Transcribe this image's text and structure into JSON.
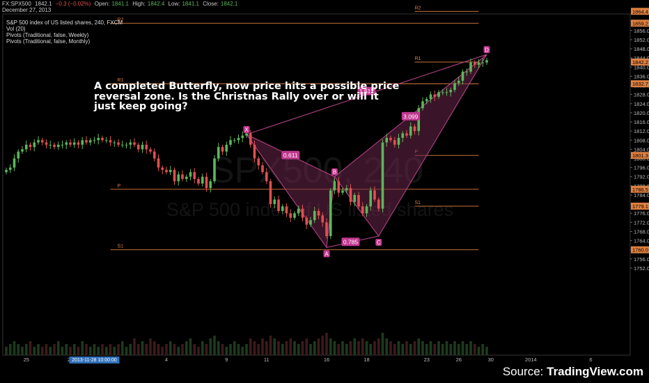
{
  "header": {
    "symbol": "FX:SPX500",
    "price": "1842.1",
    "change": "−0.3 (−0.02%)",
    "open_label": "Open:",
    "open": "1841.1",
    "high_label": "High:",
    "high": "1842.4",
    "low_label": "Low:",
    "low": "1841.1",
    "close_label": "Close:",
    "close": "1842.1",
    "date": "December 27, 2013"
  },
  "legend": [
    "S&P 500 index of US listed shares, 240, FXCM",
    "Vol (20)",
    "Pivots (Traditional, false, Weekly)",
    "Pivots (Traditional, false, Monthly)"
  ],
  "annotation": "A completed Butterfly, now price hits a possible price reversal zone. Is the Christnas Rally over or will it just keep going?",
  "watermark": {
    "line1": "SPX500, 240",
    "line2": "S&P 500 index of US listed shares"
  },
  "source": {
    "prefix": "Source: ",
    "brand": "TradingView.com"
  },
  "colors": {
    "background": "#000000",
    "up": "#5ab85a",
    "down": "#e05050",
    "pivot": "#e08040",
    "pattern": "#c04890",
    "pattern_fill": "#6a2448",
    "label_bg": "#c03890"
  },
  "chart_data": {
    "type": "candlestick",
    "y_range": [
      1748,
      1866
    ],
    "y_ticks": [
      1752,
      1756,
      1760,
      1764,
      1768,
      1772,
      1776,
      1780,
      1784,
      1788,
      1792,
      1796,
      1800,
      1804,
      1808,
      1812,
      1816,
      1820,
      1824,
      1828,
      1832,
      1836,
      1840,
      1844,
      1848,
      1852,
      1856,
      1860,
      1864
    ],
    "x_ticks": [
      {
        "label": "25",
        "i": 5
      },
      {
        "label": "27",
        "i": 16
      },
      {
        "label": "4",
        "i": 40
      },
      {
        "label": "9",
        "i": 55
      },
      {
        "label": "11",
        "i": 65
      },
      {
        "label": "16",
        "i": 80
      },
      {
        "label": "18",
        "i": 90
      },
      {
        "label": "23",
        "i": 105
      },
      {
        "label": "26",
        "i": 113
      },
      {
        "label": "30",
        "i": 121
      },
      {
        "label": "2014",
        "i": 131
      },
      {
        "label": "6",
        "i": 146
      }
    ],
    "cursor_date": "2013-11-28 10:00:00",
    "price_labels": [
      {
        "value": 1864.4,
        "text": "1864.4",
        "color": "#e08040"
      },
      {
        "value": 1859.2,
        "text": "1859.2",
        "color": "#e08040"
      },
      {
        "value": 1842.2,
        "text": "1842.2",
        "color": "#e08040"
      },
      {
        "value": 1832.7,
        "text": "1832.7",
        "color": "#e08040"
      },
      {
        "value": 1801.3,
        "text": "1801.3",
        "color": "#e08040"
      },
      {
        "value": 1786.5,
        "text": "1786.5",
        "color": "#e08040"
      },
      {
        "value": 1779.1,
        "text": "1779.1",
        "color": "#e08040"
      },
      {
        "value": 1760.0,
        "text": "1760.0",
        "color": "#e08040"
      }
    ],
    "pivots": [
      {
        "label": "R2",
        "value": 1864.4,
        "from": 102,
        "to": 118
      },
      {
        "label": "R1",
        "value": 1842.2,
        "from": 102,
        "to": 118
      },
      {
        "label": "P",
        "value": 1801.3,
        "from": 102,
        "to": 118
      },
      {
        "label": "S1",
        "value": 1779.1,
        "from": 102,
        "to": 118
      },
      {
        "label": "R2",
        "value": 1859.2,
        "from": 26,
        "to": 118
      },
      {
        "label": "R1",
        "value": 1832.7,
        "from": 26,
        "to": 118
      },
      {
        "label": "P",
        "value": 1786.5,
        "from": 26,
        "to": 118
      },
      {
        "label": "S1",
        "value": 1760.0,
        "from": 26,
        "to": 118
      }
    ],
    "pattern": {
      "name": "Butterfly",
      "points": [
        {
          "label": "X",
          "i": 60,
          "price": 1810.5
        },
        {
          "label": "A",
          "i": 80,
          "price": 1761.0
        },
        {
          "label": "B",
          "i": 82,
          "price": 1792.0
        },
        {
          "label": "C",
          "i": 93,
          "price": 1766.0
        },
        {
          "label": "D",
          "i": 120,
          "price": 1845.5
        }
      ],
      "ratios": [
        {
          "text": "0.611",
          "i": 71,
          "price": 1801.5
        },
        {
          "text": "0.785",
          "i": 86,
          "price": 1763.5
        },
        {
          "text": "3.099",
          "i": 101,
          "price": 1818.5
        },
        {
          "text": "1.617",
          "i": 90,
          "price": 1829.5
        }
      ]
    },
    "closes": [
      1795,
      1796,
      1800,
      1803,
      1804,
      1806,
      1805,
      1807,
      1808,
      1807,
      1806,
      1806,
      1805,
      1806,
      1806,
      1807,
      1806,
      1807,
      1806,
      1808,
      1807,
      1808,
      1808,
      1809,
      1808,
      1808,
      1807,
      1807,
      1806,
      1806,
      1806,
      1807,
      1806,
      1804,
      1806,
      1804,
      1803,
      1800,
      1796,
      1795,
      1794,
      1795,
      1790,
      1793,
      1791,
      1792,
      1794,
      1791,
      1789,
      1792,
      1787,
      1790,
      1800,
      1805,
      1803,
      1806,
      1808,
      1808,
      1809,
      1810,
      1811,
      1806,
      1800,
      1797,
      1794,
      1790,
      1780,
      1782,
      1777,
      1779,
      1776,
      1774,
      1776,
      1778,
      1774,
      1771,
      1773,
      1777,
      1775,
      1772,
      1766,
      1786,
      1790,
      1785,
      1786,
      1787,
      1781,
      1784,
      1779,
      1776,
      1779,
      1786,
      1782,
      1778,
      1807,
      1809,
      1808,
      1806,
      1809,
      1811,
      1810,
      1814,
      1812,
      1822,
      1825,
      1826,
      1828,
      1827,
      1829,
      1829,
      1829,
      1830,
      1833,
      1834,
      1838,
      1838,
      1842,
      1841,
      1842,
      1842,
      1843
    ],
    "volumes": [
      3,
      4,
      5,
      4,
      3,
      4,
      5,
      3,
      4,
      3,
      4,
      3,
      4,
      5,
      3,
      4,
      3,
      4,
      3,
      5,
      4,
      3,
      4,
      3,
      4,
      3,
      4,
      3,
      4,
      5,
      3,
      4,
      6,
      4,
      5,
      4,
      6,
      5,
      4,
      3,
      4,
      5,
      4,
      3,
      4,
      5,
      6,
      4,
      3,
      5,
      4,
      6,
      7,
      5,
      4,
      3,
      4,
      5,
      4,
      3,
      4,
      6,
      5,
      4,
      6,
      5,
      7,
      6,
      5,
      4,
      5,
      6,
      5,
      4,
      5,
      6,
      4,
      5,
      6,
      7,
      8,
      6,
      5,
      4,
      5,
      4,
      5,
      6,
      5,
      6,
      5,
      4,
      5,
      6,
      8,
      6,
      5,
      4,
      5,
      4,
      5,
      4,
      5,
      6,
      5,
      4,
      5,
      4,
      5,
      4,
      5,
      4,
      5,
      4,
      5,
      4,
      5,
      4,
      3,
      4,
      3
    ]
  }
}
